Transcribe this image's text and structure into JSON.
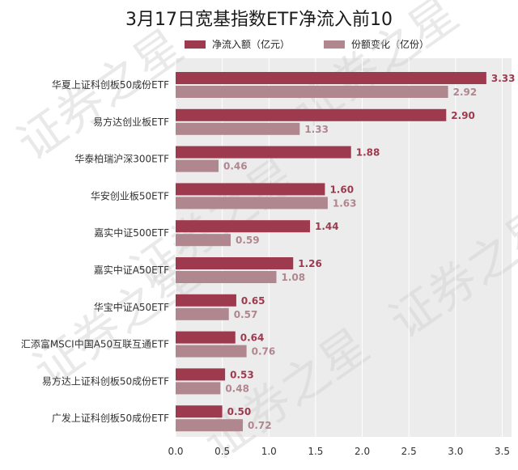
{
  "colors": {
    "net_inflow": "#9e3a4e",
    "share_change": "#b0868f",
    "plot_bg": "#ececec",
    "grid": "#ffffff"
  },
  "watermark_text": "证券之星",
  "chart_data": {
    "type": "bar",
    "orientation": "horizontal",
    "title": "3月17日宽基指数ETF净流入前10",
    "categories": [
      "华夏上证科创板50成份ETF",
      "易方达创业板ETF",
      "华泰柏瑞沪深300ETF",
      "华安创业板50ETF",
      "嘉实中证500ETF",
      "嘉实中证A50ETF",
      "华宝中证A50ETF",
      "汇添富MSCI中国A50互联互通ETF",
      "易方达上证科创板50成份ETF",
      "广发上证科创板50成份ETF"
    ],
    "series": [
      {
        "name": "净流入额（亿元）",
        "values": [
          "3.33",
          "2.90",
          "1.88",
          "1.60",
          "1.44",
          "1.26",
          "0.65",
          "0.64",
          "0.53",
          "0.50"
        ]
      },
      {
        "name": "份额变化（亿份）",
        "values": [
          "2.92",
          "1.33",
          "0.46",
          "1.63",
          "0.59",
          "1.08",
          "0.57",
          "0.76",
          "0.48",
          "0.72"
        ]
      }
    ],
    "xlim": [
      0,
      3.6
    ],
    "xticks": [
      "0.0",
      "0.5",
      "1.0",
      "1.5",
      "2.0",
      "2.5",
      "3.0",
      "3.5"
    ],
    "grid": true,
    "legend_position": "top"
  }
}
